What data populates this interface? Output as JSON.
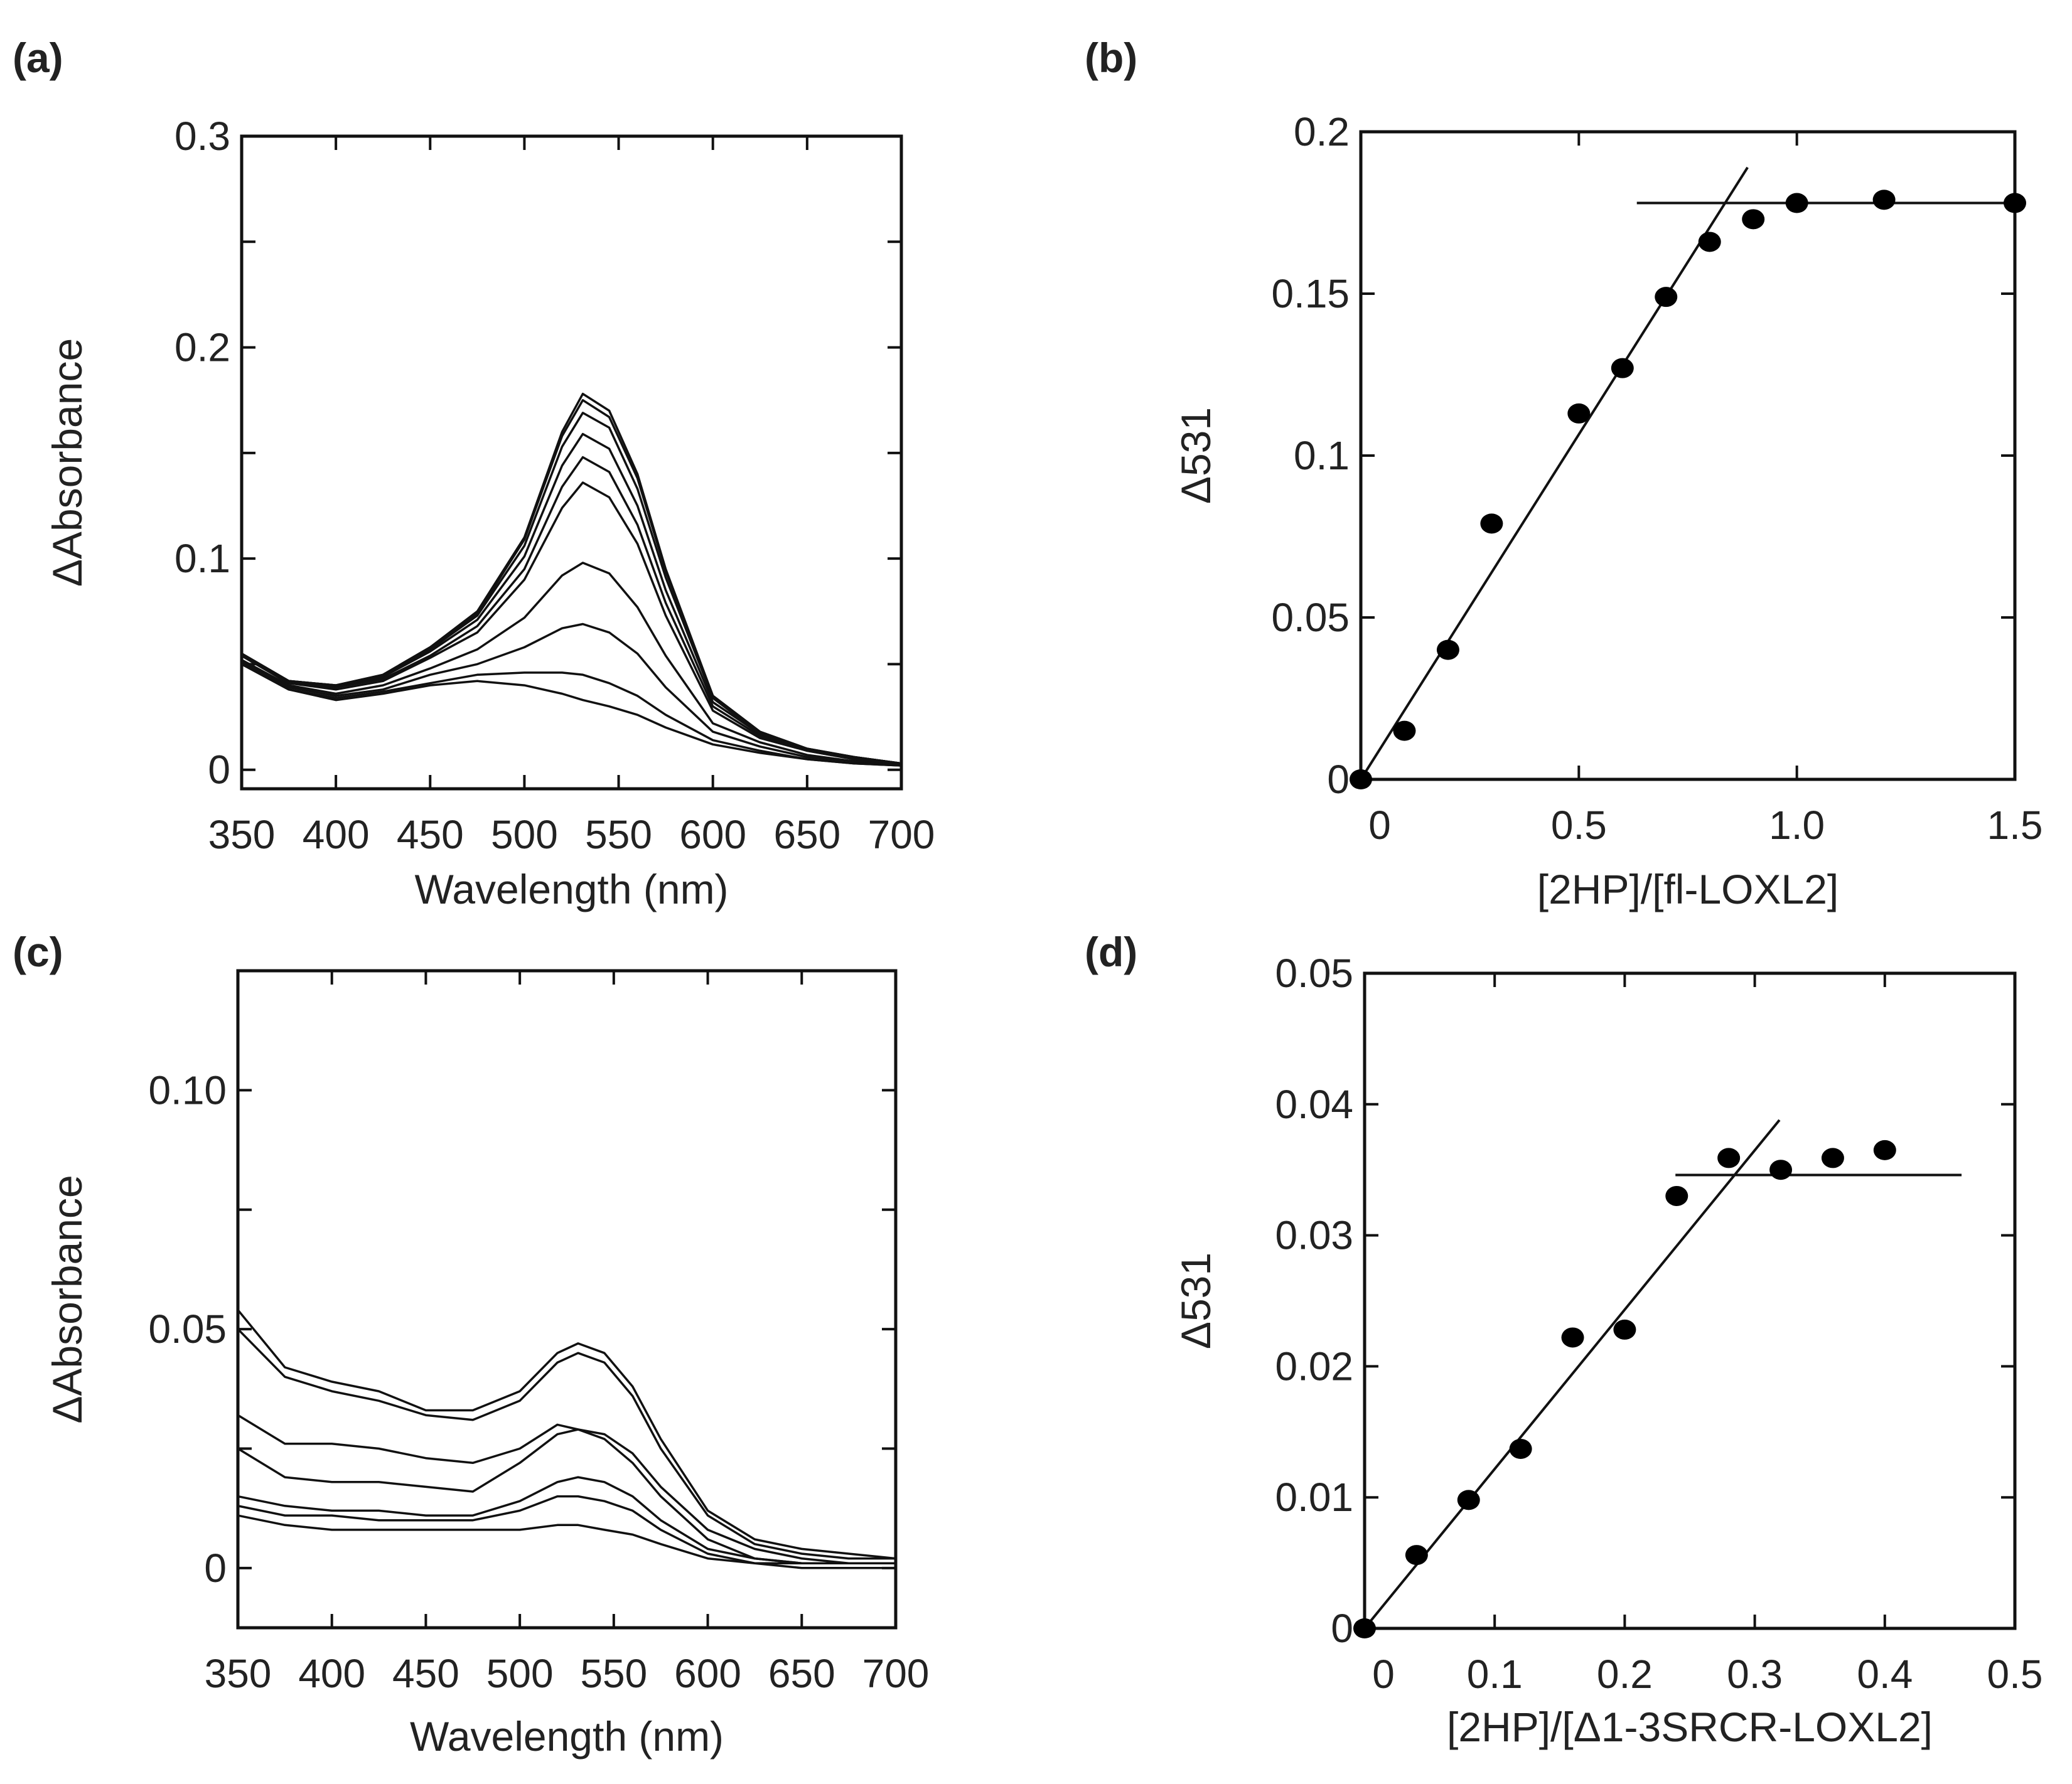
{
  "chart_data": [
    {
      "panel_label": "(a)",
      "type": "line",
      "xlabel": "Wavelength (nm)",
      "ylabel": "ΔAbsorbance",
      "xlim": [
        350,
        700
      ],
      "ylim": [
        -0.009,
        0.3
      ],
      "xticks": [
        350,
        400,
        450,
        500,
        550,
        600,
        650,
        700
      ],
      "xtick_labels": [
        "350",
        "400",
        "450",
        "500",
        "550",
        "600",
        "650",
        "700"
      ],
      "yticks_minor": [
        0,
        0.05,
        0.1,
        0.15,
        0.2,
        0.25,
        0.3
      ],
      "yticks": [
        0,
        0.1,
        0.2,
        0.3
      ],
      "ytick_labels": [
        "0",
        "0.1",
        "0.2",
        "0.3"
      ],
      "x": [
        350,
        375,
        400,
        425,
        450,
        475,
        500,
        520,
        531,
        545,
        560,
        575,
        600,
        625,
        650,
        675,
        700
      ],
      "series": [
        {
          "values": [
            0.055,
            0.042,
            0.04,
            0.045,
            0.058,
            0.075,
            0.11,
            0.16,
            0.178,
            0.17,
            0.14,
            0.095,
            0.035,
            0.018,
            0.01,
            0.006,
            0.003
          ]
        },
        {
          "values": [
            0.055,
            0.042,
            0.04,
            0.045,
            0.058,
            0.074,
            0.109,
            0.158,
            0.175,
            0.167,
            0.138,
            0.094,
            0.035,
            0.018,
            0.01,
            0.006,
            0.003
          ]
        },
        {
          "values": [
            0.055,
            0.042,
            0.04,
            0.044,
            0.057,
            0.073,
            0.106,
            0.153,
            0.169,
            0.162,
            0.133,
            0.091,
            0.034,
            0.017,
            0.01,
            0.006,
            0.003
          ]
        },
        {
          "values": [
            0.054,
            0.041,
            0.039,
            0.044,
            0.056,
            0.071,
            0.101,
            0.144,
            0.159,
            0.152,
            0.125,
            0.085,
            0.032,
            0.017,
            0.009,
            0.006,
            0.003
          ]
        },
        {
          "values": [
            0.054,
            0.041,
            0.039,
            0.043,
            0.054,
            0.068,
            0.095,
            0.134,
            0.148,
            0.141,
            0.116,
            0.079,
            0.03,
            0.016,
            0.009,
            0.005,
            0.003
          ]
        },
        {
          "values": [
            0.054,
            0.041,
            0.038,
            0.042,
            0.053,
            0.065,
            0.09,
            0.124,
            0.136,
            0.129,
            0.107,
            0.073,
            0.028,
            0.015,
            0.009,
            0.005,
            0.003
          ]
        },
        {
          "values": [
            0.052,
            0.04,
            0.036,
            0.04,
            0.048,
            0.057,
            0.072,
            0.092,
            0.098,
            0.093,
            0.077,
            0.054,
            0.022,
            0.013,
            0.007,
            0.004,
            0.002
          ]
        },
        {
          "values": [
            0.051,
            0.039,
            0.035,
            0.038,
            0.045,
            0.05,
            0.058,
            0.067,
            0.069,
            0.065,
            0.055,
            0.039,
            0.018,
            0.011,
            0.006,
            0.004,
            0.002
          ]
        },
        {
          "values": [
            0.05,
            0.038,
            0.034,
            0.037,
            0.041,
            0.045,
            0.046,
            0.046,
            0.045,
            0.041,
            0.035,
            0.026,
            0.014,
            0.009,
            0.005,
            0.003,
            0.002
          ]
        },
        {
          "values": [
            0.05,
            0.038,
            0.033,
            0.036,
            0.04,
            0.042,
            0.04,
            0.036,
            0.033,
            0.03,
            0.026,
            0.02,
            0.012,
            0.008,
            0.005,
            0.003,
            0.002
          ]
        }
      ]
    },
    {
      "panel_label": "(b)",
      "type": "scatter",
      "xlabel": "[2HP]/[fl-LOXL2]",
      "ylabel": "Δ531",
      "xlim": [
        0,
        1.5
      ],
      "ylim": [
        0,
        0.2
      ],
      "xticks": [
        0,
        0.5,
        1.0,
        1.5
      ],
      "xtick_labels": [
        "0",
        "0.5",
        "1.0",
        "1.5"
      ],
      "yticks_minor": [
        0,
        0.05,
        0.1,
        0.15,
        0.2
      ],
      "yticks": [
        0,
        0.05,
        0.1,
        0.15,
        0.2
      ],
      "ytick_labels": [
        "0",
        "0.05",
        "0.1",
        "0.15",
        "0.2"
      ],
      "points": {
        "x": [
          0,
          0.1,
          0.2,
          0.3,
          0.5,
          0.6,
          0.7,
          0.8,
          0.9,
          1.0,
          1.2,
          1.5
        ],
        "y": [
          0,
          0.015,
          0.04,
          0.079,
          0.113,
          0.127,
          0.149,
          0.166,
          0.173,
          0.178,
          0.179,
          0.178
        ]
      },
      "fit_lines": [
        {
          "x": [
            0,
            0.887
          ],
          "y": [
            0,
            0.189
          ]
        },
        {
          "x": [
            0.633,
            1.5
          ],
          "y": [
            0.178,
            0.178
          ]
        }
      ]
    },
    {
      "panel_label": "(c)",
      "type": "line",
      "xlabel": "Wavelength (nm)",
      "ylabel": "ΔAbsorbance",
      "xlim": [
        350,
        700
      ],
      "ylim": [
        -0.0125,
        0.125
      ],
      "xticks": [
        350,
        400,
        450,
        500,
        550,
        600,
        650,
        700
      ],
      "xtick_labels": [
        "350",
        "400",
        "450",
        "500",
        "550",
        "600",
        "650",
        "700"
      ],
      "yticks_minor": [
        0,
        0.025,
        0.05,
        0.075,
        0.1
      ],
      "yticks": [
        0,
        0.05,
        0.1
      ],
      "ytick_labels": [
        "0",
        "0.05",
        "0.10"
      ],
      "x": [
        350,
        375,
        400,
        425,
        450,
        475,
        500,
        520,
        531,
        545,
        560,
        575,
        600,
        625,
        650,
        675,
        700
      ],
      "series": [
        {
          "values": [
            0.054,
            0.042,
            0.039,
            0.037,
            0.033,
            0.033,
            0.037,
            0.045,
            0.047,
            0.045,
            0.038,
            0.027,
            0.012,
            0.006,
            0.004,
            0.003,
            0.002
          ]
        },
        {
          "values": [
            0.05,
            0.04,
            0.037,
            0.035,
            0.032,
            0.031,
            0.035,
            0.043,
            0.045,
            0.043,
            0.036,
            0.025,
            0.011,
            0.005,
            0.003,
            0.002,
            0.002
          ]
        },
        {
          "values": [
            0.032,
            0.026,
            0.026,
            0.025,
            0.023,
            0.022,
            0.025,
            0.03,
            0.029,
            0.028,
            0.024,
            0.017,
            0.008,
            0.004,
            0.002,
            0.001,
            0.001
          ]
        },
        {
          "values": [
            0.025,
            0.019,
            0.018,
            0.018,
            0.017,
            0.016,
            0.022,
            0.028,
            0.029,
            0.027,
            0.022,
            0.015,
            0.006,
            0.002,
            0.001,
            0.001,
            0.001
          ]
        },
        {
          "values": [
            0.015,
            0.013,
            0.012,
            0.012,
            0.011,
            0.011,
            0.014,
            0.018,
            0.019,
            0.018,
            0.015,
            0.01,
            0.004,
            0.002,
            0.001,
            0.001,
            0.001
          ]
        },
        {
          "values": [
            0.013,
            0.011,
            0.011,
            0.01,
            0.01,
            0.01,
            0.012,
            0.015,
            0.015,
            0.014,
            0.012,
            0.008,
            0.003,
            0.001,
            0.001,
            0.001,
            0.001
          ]
        },
        {
          "values": [
            0.011,
            0.009,
            0.008,
            0.008,
            0.008,
            0.008,
            0.008,
            0.009,
            0.009,
            0.008,
            0.007,
            0.005,
            0.002,
            0.001,
            0.0,
            0.0,
            0.0
          ]
        }
      ]
    },
    {
      "panel_label": "(d)",
      "type": "scatter",
      "xlabel": "[2HP]/[Δ1-3SRCR-LOXL2]",
      "ylabel": "Δ531",
      "xlim": [
        0,
        0.5
      ],
      "ylim": [
        0,
        0.05
      ],
      "xticks": [
        0,
        0.1,
        0.2,
        0.3,
        0.4,
        0.5
      ],
      "xtick_labels": [
        "0",
        "0.1",
        "0.2",
        "0.3",
        "0.4",
        "0.5"
      ],
      "yticks_minor": [
        0,
        0.01,
        0.02,
        0.03,
        0.04,
        0.05
      ],
      "yticks": [
        0,
        0.01,
        0.02,
        0.03,
        0.04,
        0.05
      ],
      "ytick_labels": [
        "0",
        "0.01",
        "0.02",
        "0.03",
        "0.04",
        "0.05"
      ],
      "points": {
        "x": [
          0,
          0.04,
          0.08,
          0.12,
          0.16,
          0.2,
          0.24,
          0.28,
          0.32,
          0.36,
          0.4
        ],
        "y": [
          0,
          0.0056,
          0.0098,
          0.0137,
          0.0222,
          0.0228,
          0.033,
          0.0359,
          0.035,
          0.0359,
          0.0365
        ]
      },
      "fit_lines": [
        {
          "x": [
            0,
            0.319
          ],
          "y": [
            0,
            0.0388
          ]
        },
        {
          "x": [
            0.239,
            0.459
          ],
          "y": [
            0.0346,
            0.0346
          ]
        }
      ]
    }
  ]
}
